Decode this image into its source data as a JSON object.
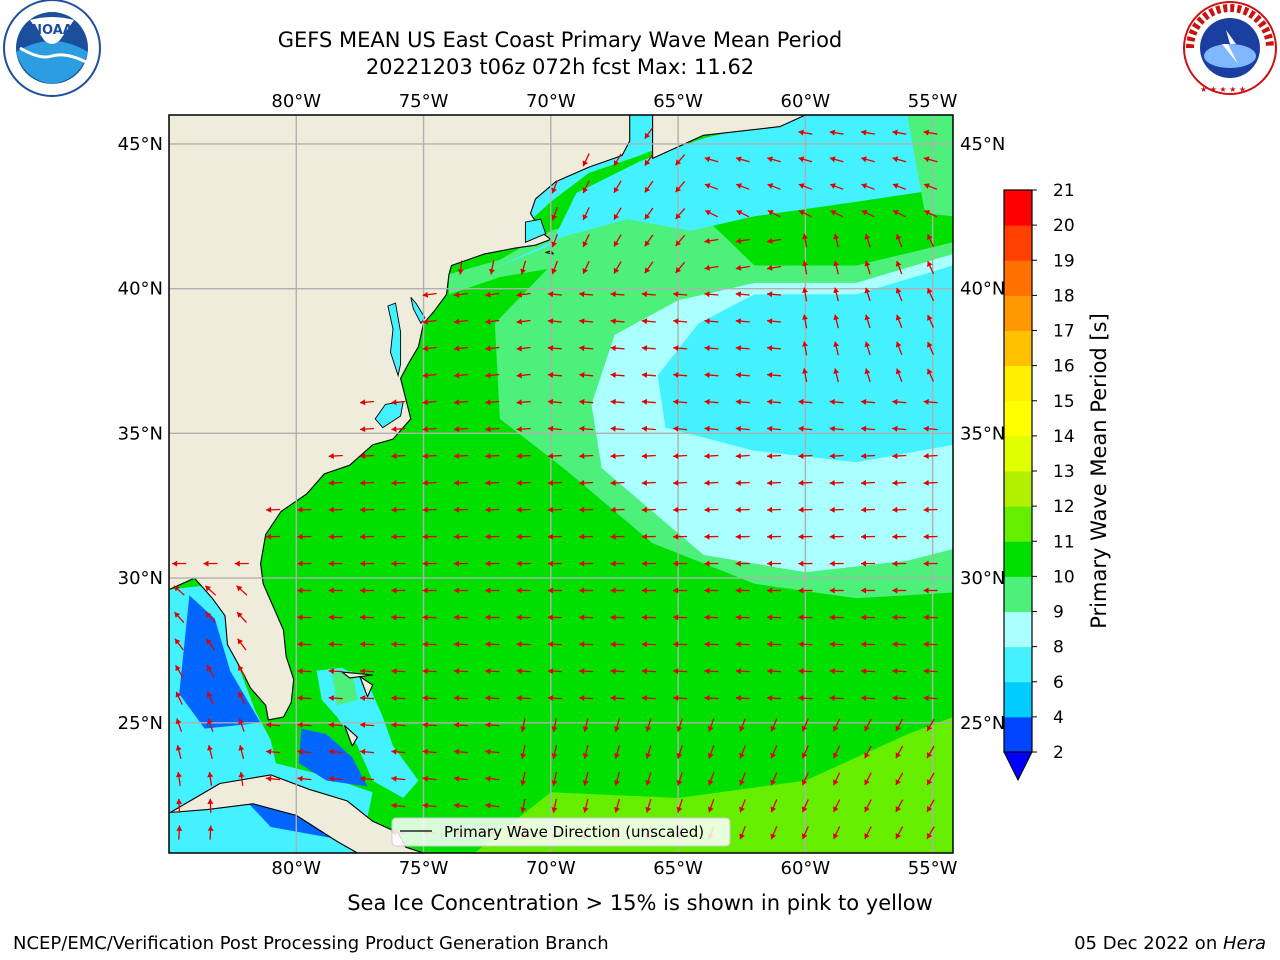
{
  "title": {
    "line1": "GEFS MEAN US East Coast Primary Wave Mean Period",
    "line2": "20221203 t06z 072h fcst   Max: 11.62"
  },
  "logos": {
    "left": {
      "name": "noaa-logo",
      "text": "NOAA",
      "ring_text": "NATIONAL OCEANIC AND ATMOSPHERIC ADMINISTRATION · U.S. DEPARTMENT OF COMMERCE"
    },
    "right": {
      "name": "nws-logo",
      "ring_text": "NATIONAL WEATHER SERVICE"
    }
  },
  "map": {
    "lon_labels": [
      "80°W",
      "75°W",
      "70°W",
      "65°W",
      "60°W",
      "55°W"
    ],
    "lat_labels": [
      "45°N",
      "40°N",
      "35°N",
      "30°N",
      "25°N"
    ],
    "lon_range": [
      -85,
      -54.2
    ],
    "lat_range": [
      20.5,
      46
    ],
    "legend_label": "Primary Wave Direction (unscaled)",
    "arrow_color": "#e00000",
    "land_color": "#efecdc",
    "grid_color": "#b0b0b0"
  },
  "colorbar": {
    "label": "Primary Wave Mean Period [s]",
    "ticks": [
      "2",
      "4",
      "6",
      "8",
      "9",
      "10",
      "11",
      "12",
      "13",
      "14",
      "15",
      "16",
      "17",
      "18",
      "19",
      "20",
      "21"
    ],
    "colors": [
      "#0044ff",
      "#00ccff",
      "#44f2ff",
      "#aaffff",
      "#4cf07a",
      "#00e000",
      "#66ee00",
      "#b2f000",
      "#e0ff00",
      "#ffff00",
      "#fff000",
      "#ffc000",
      "#ff9800",
      "#ff7000",
      "#ff4000",
      "#ff0000"
    ],
    "extend_color": "#0000ff"
  },
  "footer": {
    "sea_ice_note": "Sea Ice Concentration > 15% is shown in pink to yellow",
    "credit": "NCEP/EMC/Verification Post Processing Product Generation Branch",
    "date": "05 Dec 2022 on ",
    "machine": "Hera"
  }
}
